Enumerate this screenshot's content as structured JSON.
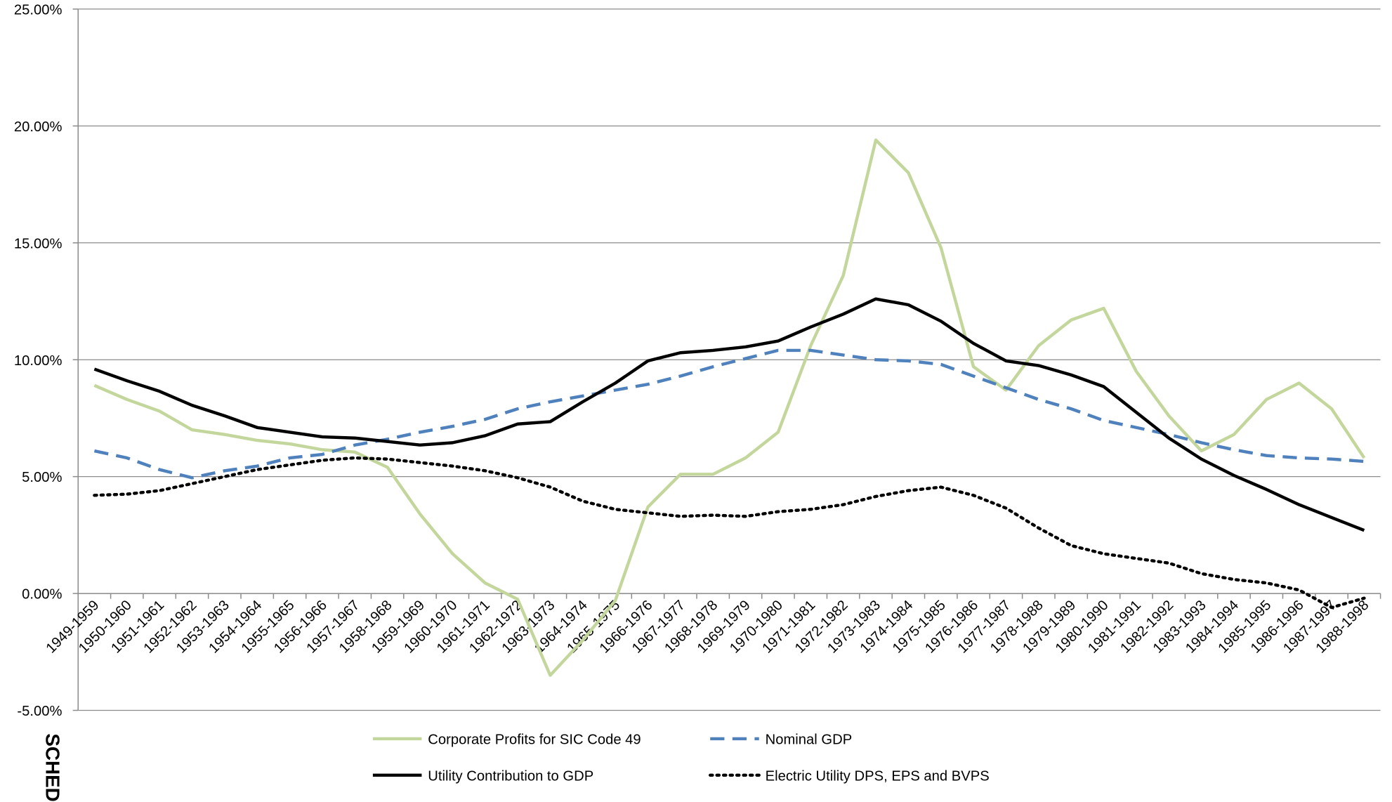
{
  "chart_data": {
    "type": "line",
    "annotation": "SCHED",
    "categories": [
      "1949-1959",
      "1950-1960",
      "1951-1961",
      "1952-1962",
      "1953-1963",
      "1954-1964",
      "1955-1965",
      "1956-1966",
      "1957-1967",
      "1958-1968",
      "1959-1969",
      "1960-1970",
      "1961-1971",
      "1962-1972",
      "1963-1973",
      "1964-1974",
      "1965-1975",
      "1966-1976",
      "1967-1977",
      "1968-1978",
      "1969-1979",
      "1970-1980",
      "1971-1981",
      "1972-1982",
      "1973-1983",
      "1974-1984",
      "1975-1985",
      "1976-1986",
      "1977-1987",
      "1978-1988",
      "1979-1989",
      "1980-1990",
      "1981-1991",
      "1982-1992",
      "1983-1993",
      "1984-1994",
      "1985-1995",
      "1986-1996",
      "1987-1997",
      "1988-1998"
    ],
    "series": [
      {
        "name": "Corporate Profits for SIC Code 49",
        "color": "#c3d69b",
        "style": "solid",
        "values": [
          8.9,
          8.3,
          7.8,
          7.0,
          6.8,
          6.55,
          6.4,
          6.15,
          6.05,
          5.4,
          3.4,
          1.7,
          0.45,
          -0.25,
          -3.5,
          -2.0,
          -0.3,
          3.7,
          5.1,
          5.1,
          5.8,
          6.9,
          10.6,
          13.6,
          19.4,
          18.0,
          14.8,
          9.7,
          8.7,
          10.6,
          11.7,
          12.2,
          9.5,
          7.6,
          6.1,
          6.8,
          8.3,
          9.0,
          7.9,
          5.8
        ]
      },
      {
        "name": "Nominal GDP",
        "color": "#4f81bd",
        "style": "dashed",
        "values": [
          6.1,
          5.8,
          5.3,
          4.95,
          5.25,
          5.45,
          5.8,
          5.95,
          6.35,
          6.6,
          6.9,
          7.15,
          7.45,
          7.9,
          8.2,
          8.45,
          8.7,
          8.95,
          9.3,
          9.7,
          10.05,
          10.4,
          10.4,
          10.2,
          10.0,
          9.95,
          9.8,
          9.3,
          8.8,
          8.3,
          7.9,
          7.4,
          7.1,
          6.8,
          6.45,
          6.15,
          5.9,
          5.8,
          5.75,
          5.65
        ]
      },
      {
        "name": "Utility Contribution to GDP",
        "color": "#000000",
        "style": "solid",
        "values": [
          9.6,
          9.1,
          8.65,
          8.05,
          7.6,
          7.1,
          6.9,
          6.7,
          6.65,
          6.5,
          6.35,
          6.45,
          6.75,
          7.25,
          7.35,
          8.2,
          9.0,
          9.95,
          10.3,
          10.4,
          10.55,
          10.8,
          11.4,
          11.95,
          12.6,
          12.35,
          11.65,
          10.7,
          9.95,
          9.75,
          9.35,
          8.85,
          7.75,
          6.65,
          5.75,
          5.05,
          4.45,
          3.8,
          3.25,
          2.7
        ]
      },
      {
        "name": "Electric Utility DPS, EPS and BVPS",
        "color": "#000000",
        "style": "dotted",
        "values": [
          4.2,
          4.25,
          4.4,
          4.7,
          5.0,
          5.3,
          5.5,
          5.7,
          5.8,
          5.75,
          5.6,
          5.45,
          5.25,
          4.95,
          4.55,
          3.95,
          3.6,
          3.45,
          3.3,
          3.35,
          3.3,
          3.5,
          3.6,
          3.8,
          4.15,
          4.4,
          4.55,
          4.2,
          3.65,
          2.8,
          2.05,
          1.7,
          1.5,
          1.3,
          0.85,
          0.6,
          0.45,
          0.15,
          -0.6,
          -0.2
        ]
      }
    ],
    "ylim": [
      -5,
      25
    ],
    "yticks": [
      {
        "value": -5,
        "label": "-5.00%"
      },
      {
        "value": 0,
        "label": "0.00%"
      },
      {
        "value": 5,
        "label": "5.00%"
      },
      {
        "value": 10,
        "label": "10.00%"
      },
      {
        "value": 15,
        "label": "15.00%"
      },
      {
        "value": 20,
        "label": "20.00%"
      },
      {
        "value": 25,
        "label": "25.00%"
      }
    ],
    "grid": true,
    "legend": "bottom"
  }
}
